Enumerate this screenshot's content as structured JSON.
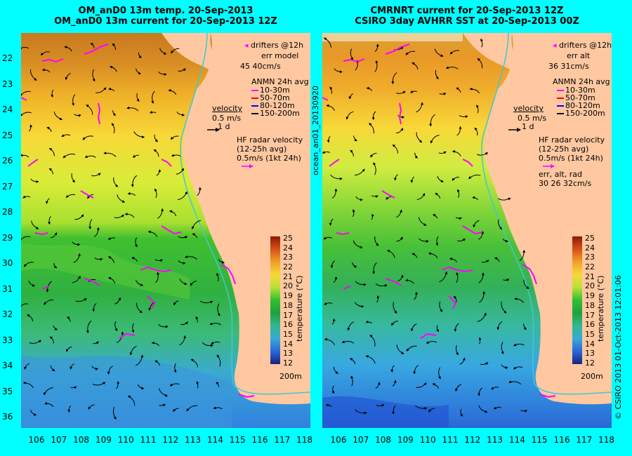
{
  "left_panel": {
    "title_line1": "OM_anD0 13m temp. 20-Sep-2013",
    "title_line2": "OM_anD0 13m current for 20-Sep-2013 12Z",
    "drifters_label": "drifters @12h",
    "err_label": "err model",
    "err_values": "45 40cm/s",
    "velocity_label": "velocity",
    "velocity_scale": "0.5 m/s",
    "velocity_time": "1 d",
    "hf_label": "HF radar velocity",
    "hf_avg": "(12-25h avg)",
    "hf_scale": "0.5m/s (1kt 24h)",
    "depth_label": "200m"
  },
  "right_panel": {
    "title_line1": "CMRNRT current for 20-Sep-2013 12Z",
    "title_line2": "CSIRO 3day AVHRR SST at 20-Sep-2013 00Z",
    "drifters_label": "drifters @12h",
    "err_label": "err alt",
    "err_values": "36 31cm/s",
    "velocity_label": "velocity",
    "velocity_scale": "0.5 m/s",
    "velocity_time": "1 d",
    "hf_label": "HF radar velocity",
    "hf_avg": "(12-25h avg)",
    "hf_scale": "0.5m/s (1kt 24h)",
    "err2_label": "err, alt, rad",
    "err2_values": "30 26 32cm/s",
    "depth_label": "200m"
  },
  "anmn_legend": {
    "title": "ANMN 24h avg",
    "items": [
      {
        "label": "10-30m",
        "color": "#ff00ff"
      },
      {
        "label": "50-70m",
        "color": "#ff0000"
      },
      {
        "label": "80-120m",
        "color": "#0000ff"
      },
      {
        "label": "150-200m",
        "color": "#000000"
      }
    ]
  },
  "colorbar": {
    "label": "temperature (°C)",
    "ticks": [
      "25",
      "24",
      "23",
      "22",
      "21",
      "20",
      "19",
      "18",
      "17",
      "16",
      "15",
      "14",
      "13",
      "12"
    ]
  },
  "latitude_ticks": [
    "22",
    "23",
    "24",
    "25",
    "26",
    "27",
    "28",
    "29",
    "30",
    "31",
    "32",
    "33",
    "34",
    "35",
    "36"
  ],
  "longitude_ticks": [
    "106",
    "107",
    "108",
    "109",
    "110",
    "111",
    "112",
    "113",
    "114",
    "115",
    "116",
    "117",
    "118"
  ],
  "side_label_left": "ocean_an01_20130920",
  "side_label_right": "© CSIRO 2013   01-Oct-2013 12:01:06",
  "colors": {
    "background": "#00ffff",
    "land": "#ffc8a0",
    "drifter": "#ff00ff"
  }
}
